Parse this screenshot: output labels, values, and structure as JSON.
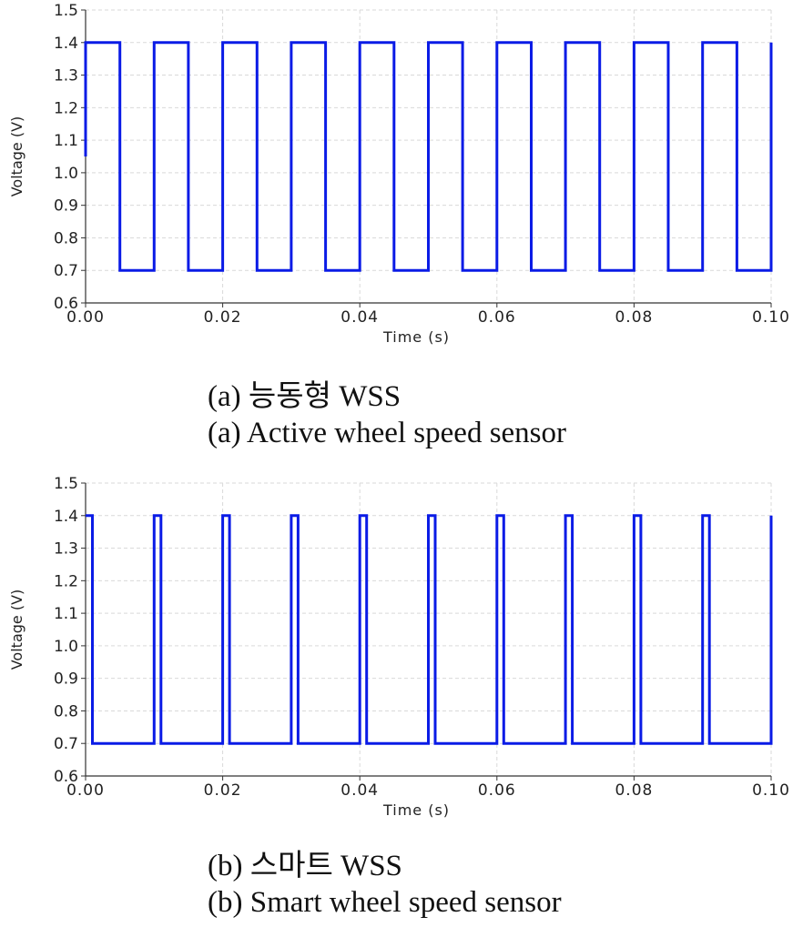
{
  "chart_data": [
    {
      "type": "line",
      "title": "",
      "xlabel": "Time (s)",
      "ylabel": "Voltage (V)",
      "xlim": [
        0.0,
        0.1
      ],
      "ylim": [
        0.6,
        1.5
      ],
      "x_ticks": [
        "0.00",
        "0.02",
        "0.04",
        "0.06",
        "0.08",
        "0.10"
      ],
      "y_ticks": [
        "0.6",
        "0.7",
        "0.8",
        "0.9",
        "1.0",
        "1.1",
        "1.2",
        "1.3",
        "1.4",
        "1.5"
      ],
      "grid": true,
      "color": "#0a1be6",
      "series": [
        {
          "x": [
            0.0,
            0.0,
            0.005,
            0.005,
            0.01,
            0.01,
            0.015,
            0.015,
            0.02,
            0.02,
            0.025,
            0.025,
            0.03,
            0.03,
            0.035,
            0.035,
            0.04,
            0.04,
            0.045,
            0.045,
            0.05,
            0.05,
            0.055,
            0.055,
            0.06,
            0.06,
            0.065,
            0.065,
            0.07,
            0.07,
            0.075,
            0.075,
            0.08,
            0.08,
            0.085,
            0.085,
            0.09,
            0.09,
            0.095,
            0.095,
            0.1,
            0.1
          ],
          "y": [
            1.05,
            1.4,
            1.4,
            0.7,
            0.7,
            1.4,
            1.4,
            0.7,
            0.7,
            1.4,
            1.4,
            0.7,
            0.7,
            1.4,
            1.4,
            0.7,
            0.7,
            1.4,
            1.4,
            0.7,
            0.7,
            1.4,
            1.4,
            0.7,
            0.7,
            1.4,
            1.4,
            0.7,
            0.7,
            1.4,
            1.4,
            0.7,
            0.7,
            1.4,
            1.4,
            0.7,
            0.7,
            1.4,
            1.4,
            0.7,
            0.7,
            1.4
          ]
        }
      ]
    },
    {
      "type": "line",
      "title": "",
      "xlabel": "Time (s)",
      "ylabel": "Voltage (V)",
      "xlim": [
        0.0,
        0.1
      ],
      "ylim": [
        0.6,
        1.5
      ],
      "x_ticks": [
        "0.00",
        "0.02",
        "0.04",
        "0.06",
        "0.08",
        "0.10"
      ],
      "y_ticks": [
        "0.6",
        "0.7",
        "0.8",
        "0.9",
        "1.0",
        "1.1",
        "1.2",
        "1.3",
        "1.4",
        "1.5"
      ],
      "grid": true,
      "color": "#0a1be6",
      "series": [
        {
          "x": [
            0.0,
            0.0,
            0.001,
            0.001,
            0.01,
            0.01,
            0.011,
            0.011,
            0.02,
            0.02,
            0.021,
            0.021,
            0.03,
            0.03,
            0.031,
            0.031,
            0.04,
            0.04,
            0.041,
            0.041,
            0.05,
            0.05,
            0.051,
            0.051,
            0.06,
            0.06,
            0.061,
            0.061,
            0.07,
            0.07,
            0.071,
            0.071,
            0.08,
            0.08,
            0.081,
            0.081,
            0.09,
            0.09,
            0.091,
            0.091,
            0.1,
            0.1
          ],
          "y": [
            1.4,
            1.4,
            1.4,
            0.7,
            0.7,
            1.4,
            1.4,
            0.7,
            0.7,
            1.4,
            1.4,
            0.7,
            0.7,
            1.4,
            1.4,
            0.7,
            0.7,
            1.4,
            1.4,
            0.7,
            0.7,
            1.4,
            1.4,
            0.7,
            0.7,
            1.4,
            1.4,
            0.7,
            0.7,
            1.4,
            1.4,
            0.7,
            0.7,
            1.4,
            1.4,
            0.7,
            0.7,
            1.4,
            1.4,
            0.7,
            0.7,
            1.4
          ]
        }
      ]
    }
  ],
  "captions": {
    "a_korean": "(a) 능동형 WSS",
    "a_english": "(a) Active wheel speed sensor",
    "b_korean": "(b) 스마트 WSS",
    "b_english": "(b) Smart wheel speed sensor"
  }
}
